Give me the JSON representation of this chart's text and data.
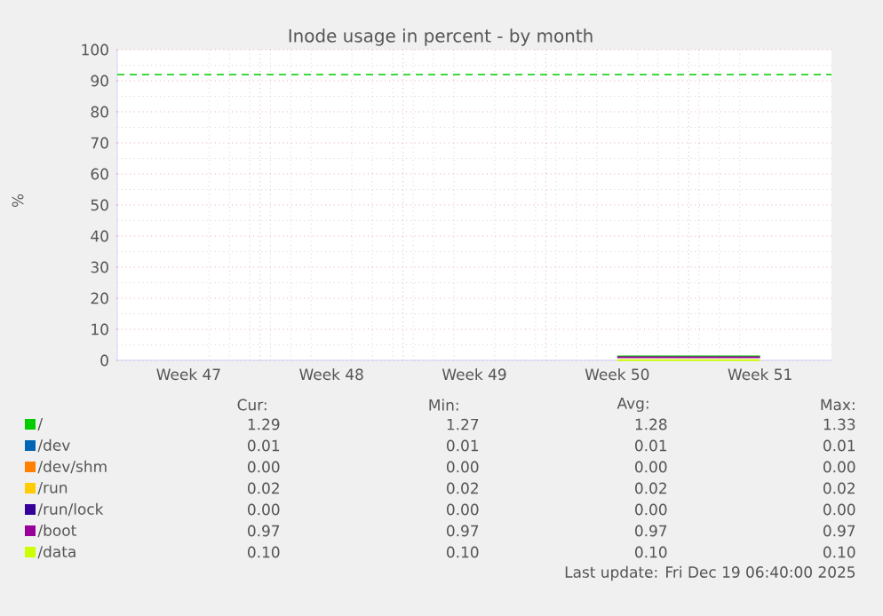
{
  "chart_data": {
    "type": "line",
    "title": "Inode usage in percent - by month",
    "ylabel": "%",
    "categories": [
      "Week 47",
      "Week 48",
      "Week 49",
      "Week 50",
      "Week 51"
    ],
    "series": [
      {
        "name": "/",
        "color": "#00cc00",
        "values": [
          null,
          null,
          null,
          1.3,
          1.3
        ]
      },
      {
        "name": "/dev",
        "color": "#0066b3",
        "values": [
          null,
          null,
          null,
          null,
          null
        ]
      },
      {
        "name": "/dev/shm",
        "color": "#ff8000",
        "values": [
          null,
          null,
          null,
          null,
          null
        ]
      },
      {
        "name": "/run",
        "color": "#ffcc00",
        "values": [
          null,
          null,
          null,
          null,
          null
        ]
      },
      {
        "name": "/run/lock",
        "color": "#330099",
        "values": [
          null,
          null,
          null,
          null,
          null
        ]
      },
      {
        "name": "/boot",
        "color": "#990099",
        "values": [
          null,
          null,
          null,
          1,
          1
        ]
      },
      {
        "name": "/data",
        "color": "#ccff00",
        "values": [
          null,
          null,
          null,
          0.1,
          0.1
        ]
      }
    ],
    "ylim": [
      0,
      100
    ],
    "yticks": [
      0,
      10,
      20,
      30,
      40,
      50,
      60,
      70,
      80,
      90,
      100
    ],
    "ref_lines": [
      {
        "axis": "y",
        "value": 92,
        "color": "#00cc00",
        "line_style": "dashed"
      }
    ],
    "grid": true,
    "legend": "bottom",
    "annotations": [
      "Cur:",
      "Min:",
      "Avg:",
      "Max:",
      "1.29",
      "1.27",
      "1.28",
      "1.33",
      "0.01",
      "0.01",
      "0.01",
      "0.01",
      "0.00",
      "0.00",
      "0.00",
      "0.00",
      "0.02",
      "0.02",
      "0.02",
      "0.02",
      "0.00",
      "0.00",
      "0.00",
      "0.00",
      "0.97",
      "0.97",
      "0.97",
      "0.97",
      "0.10",
      "0.10",
      "0.10",
      "0.10",
      "Last update: Fri Dec 19 06:40:00 2025"
    ]
  }
}
